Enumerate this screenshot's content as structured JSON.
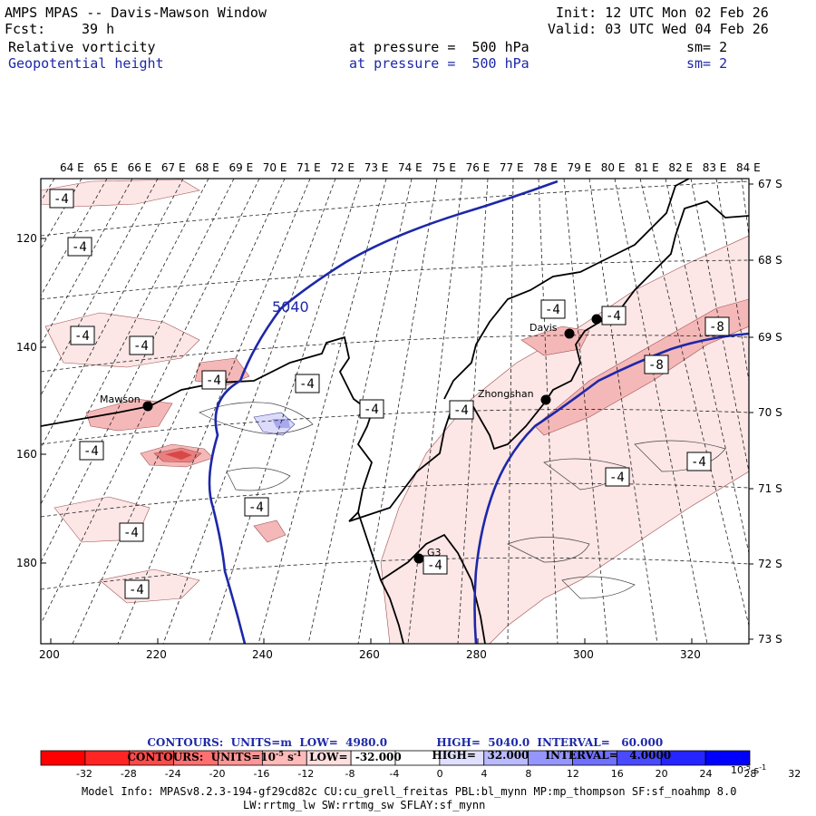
{
  "header": {
    "title": "AMPS MPAS -- Davis-Mawson Window",
    "init": "Init: 12 UTC Mon 02 Feb 26",
    "fcst_label": "Fcst:",
    "fcst_value": "39 h",
    "valid": "Valid: 03 UTC Wed 04 Feb 26",
    "field1": "Relative vorticity",
    "field1_level": "at pressure =  500 hPa",
    "field1_sm": "sm= 2",
    "field2": "Geopotential height",
    "field2_level": "at pressure =  500 hPa",
    "field2_sm": "sm= 2"
  },
  "colors": {
    "height_contour": "#1d28a8",
    "coast": "#000000",
    "neg1": "#fce6e6",
    "neg2": "#f5b8b8",
    "neg3": "#e88080",
    "neg4": "#d84848",
    "pos1": "#dcdcfa",
    "pos2": "#a8a8f0"
  },
  "top_lon_labels": [
    "64 E",
    "65 E",
    "66 E",
    "67 E",
    "68 E",
    "69 E",
    "70 E",
    "71 E",
    "72 E",
    "73 E",
    "74 E",
    "75 E",
    "76 E",
    "77 E",
    "78 E",
    "79 E",
    "80 E",
    "81 E",
    "82 E",
    "83 E",
    "84 E"
  ],
  "right_lat_labels": [
    "67 S",
    "68 S",
    "69 S",
    "70 S",
    "71 S",
    "72 S",
    "73 S"
  ],
  "left_axis_labels": [
    "120",
    "140",
    "160",
    "180"
  ],
  "bottom_axis_labels": [
    "200",
    "220",
    "240",
    "260",
    "280",
    "300",
    "320"
  ],
  "stations": [
    {
      "name": "Mawson"
    },
    {
      "name": "Davis"
    },
    {
      "name": "Zhongshan"
    },
    {
      "name": "G3"
    }
  ],
  "contour_labels": {
    "height": "5040",
    "vort_boxes": [
      "-4",
      "-4",
      "-4",
      "-4",
      "-4",
      "-4",
      "-4",
      "-4",
      "-4",
      "-4",
      "-4",
      "-4",
      "-4",
      "-4",
      "-4",
      "-8",
      "-8",
      "-4",
      "-4"
    ]
  },
  "contour_info": {
    "line1_a": "CONTOURS:  UNITS=m  LOW=  4980.0",
    "line1_b": "HIGH=  5040.0",
    "line1_c": "INTERVAL=   60.000",
    "line2_a": "CONTOURS:  UNITS=10",
    "line2_exp": "-5",
    "line2_b": " s",
    "line2_exp2": "-1",
    "line2_c": "  LOW=  -32.000",
    "line2_d": "HIGH=   32.000",
    "line2_e": "INTERVAL=   4.0000"
  },
  "colorbar": {
    "colors": [
      "#ff0000",
      "#ff2525",
      "#ff4a4a",
      "#ff7070",
      "#ff9595",
      "#ffbaba",
      "#ffdfdf",
      "#ffffff",
      "#ffffff",
      "#dfdfff",
      "#babaff",
      "#9595ff",
      "#7070ff",
      "#4a4aff",
      "#2525ff",
      "#0000ff"
    ],
    "tick_labels": [
      "-32",
      "-28",
      "-24",
      "-20",
      "-16",
      "-12",
      "-8",
      "-4",
      "0",
      "4",
      "8",
      "12",
      "16",
      "20",
      "24",
      "28",
      "32"
    ],
    "unit": "10",
    "unit_exp": "-5",
    "unit_s": " s",
    "unit_exp2": "-1"
  },
  "footer": {
    "line1": "Model Info: MPASv8.2.3-194-gf29cd82c CU:cu_grell_freitas PBL:bl_mynn MP:mp_thompson SF:sf_noahmp 8.0",
    "line2": "LW:rrtmg_lw SW:rrtmg_sw SFLAY:sf_mynn"
  }
}
